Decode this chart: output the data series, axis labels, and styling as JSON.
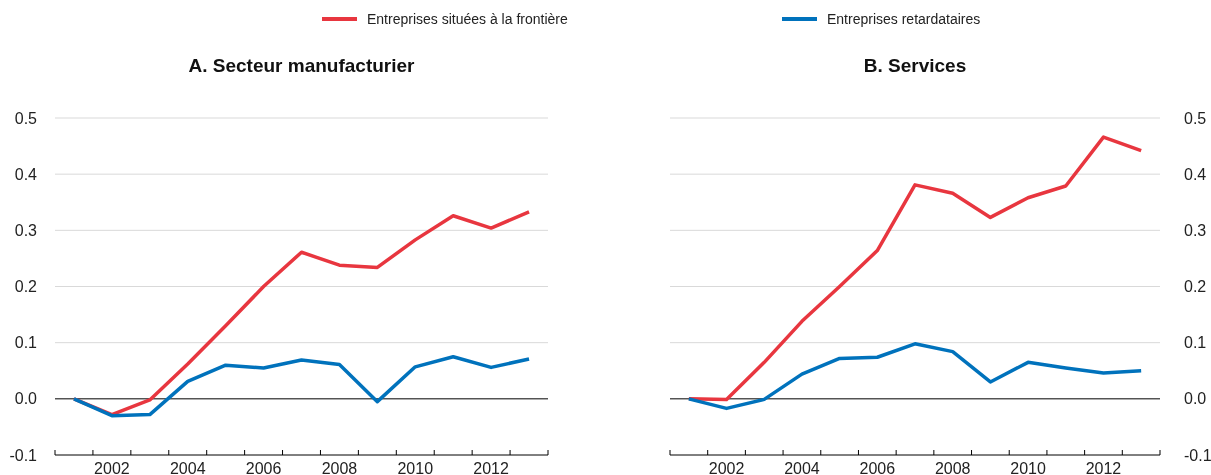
{
  "chart_data": [
    {
      "type": "line",
      "title": "A. Secteur manufacturier",
      "legend": "top",
      "categories": [
        null,
        "2002",
        null,
        "2004",
        null,
        "2006",
        null,
        "2008",
        null,
        "2010",
        null,
        "2012",
        null
      ],
      "ylim": [
        -0.1,
        0.5
      ],
      "yticks": [
        -0.1,
        {
          "value": 0,
          "label": "0.0"
        },
        0.1,
        0.2,
        0.3,
        0.4,
        0.5
      ],
      "grid": "y",
      "ref_lines": [
        {
          "axis": "y",
          "value": 0,
          "color": "#000000"
        }
      ],
      "series": [
        {
          "name": "Entreprises situées à la frontière",
          "color": "#e8363f",
          "values": [
            0,
            -0.028,
            -0.002,
            0.062,
            0.13,
            0.2,
            0.261,
            0.238,
            0.234,
            0.283,
            0.326,
            0.304,
            0.333
          ]
        },
        {
          "name": "Entreprises retardataires",
          "color": "#0072bc",
          "values": [
            0,
            -0.03,
            -0.028,
            0.031,
            0.06,
            0.055,
            0.069,
            0.061,
            -0.005,
            0.057,
            0.075,
            0.056,
            0.071
          ]
        }
      ]
    },
    {
      "type": "line",
      "title": "B. Services",
      "categories": [
        null,
        "2002",
        null,
        "2004",
        null,
        "2006",
        null,
        "2008",
        null,
        "2010",
        null,
        "2012",
        null
      ],
      "ylim": [
        -0.1,
        0.5
      ],
      "yticks": [
        -0.1,
        {
          "value": 0,
          "label": "0.0"
        },
        0.1,
        0.2,
        0.3,
        0.4,
        0.5
      ],
      "grid": "y",
      "ref_lines": [
        {
          "axis": "y",
          "value": 0,
          "color": "#000000"
        }
      ],
      "series": [
        {
          "color": "#e8363f",
          "values": [
            0,
            -0.001,
            0.065,
            0.138,
            0.2,
            0.264,
            0.381,
            0.366,
            0.323,
            0.358,
            0.379,
            0.466,
            0.442
          ]
        },
        {
          "color": "#0072bc",
          "values": [
            0,
            -0.017,
            -0.001,
            0.044,
            0.072,
            0.074,
            0.098,
            0.084,
            0.03,
            0.065,
            0.055,
            0.046,
            0.05
          ]
        }
      ]
    }
  ]
}
